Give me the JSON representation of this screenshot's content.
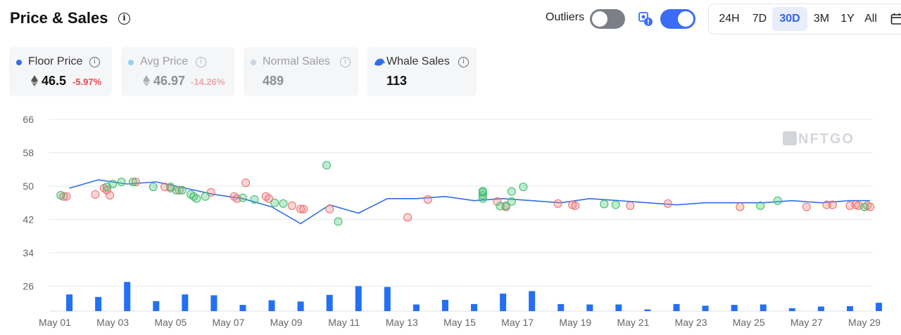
{
  "header": {
    "title": "Price & Sales",
    "outliers_label": "Outliers",
    "ranges": [
      "24H",
      "7D",
      "30D",
      "3M",
      "1Y",
      "All"
    ],
    "active_range": "30D"
  },
  "stats": [
    {
      "label": "Floor Price",
      "value": "46.5",
      "change": "-5.97%",
      "dot_color": "#2f6fe9",
      "change_color": "#e8474f"
    },
    {
      "label": "Avg Price",
      "value": "46.97",
      "change": "-14.26%",
      "dot_color": "#8fd3f0",
      "change_color": "#e8474f"
    },
    {
      "label": "Normal Sales",
      "value": "489",
      "dot_color": "#c9d3e6"
    },
    {
      "label": "Whale Sales",
      "value": "113"
    }
  ],
  "watermark": "NFTGO",
  "colors": {
    "accent": "#3b6cf6",
    "line": "#2f6fe9",
    "bar": "#2370f4",
    "up_fill": "rgba(76,200,120,0.35)",
    "up_stroke": "#3bb86a",
    "down_fill": "rgba(245,120,120,0.3)",
    "down_stroke": "#e86a6a"
  },
  "chart_data": {
    "type": "line+scatter+bar",
    "y_ticks": [
      66,
      58,
      50,
      42,
      34,
      26
    ],
    "ylim": [
      20,
      66
    ],
    "x_tick_labels": [
      "May 01",
      "May 03",
      "May 05",
      "May 07",
      "May 09",
      "May 11",
      "May 13",
      "May 15",
      "May 17",
      "May 19",
      "May 21",
      "May 23",
      "May 25",
      "May 27",
      "May 29"
    ],
    "xlim": [
      1,
      29
    ],
    "floor_price": {
      "x": [
        1.5,
        2.5,
        3.5,
        4.5,
        5.5,
        6.5,
        7.5,
        8.5,
        9.5,
        10.5,
        11.5,
        12.5,
        13.5,
        14.5,
        15.5,
        16.5,
        17.5,
        18.5,
        19.5,
        20.5,
        21.5,
        22.5,
        23.5,
        24.5,
        25.5,
        26.5,
        27.5,
        28.5,
        29.2
      ],
      "y": [
        49.5,
        51.5,
        50.5,
        51.0,
        49.5,
        48.0,
        47.0,
        45.0,
        41.0,
        45.5,
        43.5,
        47.0,
        47.0,
        47.5,
        46.5,
        47.0,
        46.5,
        46.0,
        47.0,
        46.5,
        46.0,
        45.5,
        46.0,
        46.0,
        46.0,
        46.5,
        46.0,
        46.5,
        46.5
      ]
    },
    "sales_up": [
      [
        1.2,
        47.8
      ],
      [
        2.8,
        49.8
      ],
      [
        3.0,
        50.5
      ],
      [
        3.3,
        51.0
      ],
      [
        3.7,
        51.0
      ],
      [
        4.4,
        49.8
      ],
      [
        5.0,
        49.8
      ],
      [
        5.2,
        49.0
      ],
      [
        5.4,
        49.0
      ],
      [
        5.7,
        48.0
      ],
      [
        5.8,
        47.5
      ],
      [
        5.9,
        47.0
      ],
      [
        6.2,
        47.5
      ],
      [
        7.5,
        47.2
      ],
      [
        7.9,
        46.8
      ],
      [
        8.6,
        46.0
      ],
      [
        8.9,
        45.8
      ],
      [
        10.4,
        55.0
      ],
      [
        10.8,
        41.5
      ],
      [
        15.8,
        47.0
      ],
      [
        15.8,
        47.8
      ],
      [
        15.8,
        48.5
      ],
      [
        15.8,
        48.8
      ],
      [
        16.4,
        45.2
      ],
      [
        16.6,
        45.3
      ],
      [
        16.8,
        46.3
      ],
      [
        16.8,
        48.7
      ],
      [
        17.2,
        49.8
      ],
      [
        20.0,
        45.7
      ],
      [
        20.4,
        45.5
      ],
      [
        25.4,
        45.3
      ],
      [
        26.0,
        46.5
      ],
      [
        29.0,
        45.0
      ]
    ],
    "sales_down": [
      [
        1.3,
        47.5
      ],
      [
        1.4,
        47.5
      ],
      [
        2.4,
        48.0
      ],
      [
        2.7,
        49.5
      ],
      [
        2.8,
        49.0
      ],
      [
        2.9,
        47.8
      ],
      [
        3.8,
        51.0
      ],
      [
        4.8,
        49.8
      ],
      [
        5.0,
        49.5
      ],
      [
        5.3,
        49.0
      ],
      [
        6.4,
        48.5
      ],
      [
        7.2,
        47.5
      ],
      [
        7.3,
        47.0
      ],
      [
        7.6,
        50.8
      ],
      [
        8.3,
        47.5
      ],
      [
        8.4,
        47.0
      ],
      [
        9.2,
        45.3
      ],
      [
        9.5,
        44.5
      ],
      [
        9.6,
        44.5
      ],
      [
        10.5,
        44.5
      ],
      [
        13.2,
        42.5
      ],
      [
        13.9,
        46.8
      ],
      [
        16.3,
        46.3
      ],
      [
        16.6,
        45.0
      ],
      [
        18.4,
        45.8
      ],
      [
        18.9,
        45.5
      ],
      [
        19.0,
        45.3
      ],
      [
        20.9,
        45.3
      ],
      [
        22.2,
        45.8
      ],
      [
        24.7,
        45.0
      ],
      [
        27.0,
        45.0
      ],
      [
        27.7,
        45.5
      ],
      [
        27.9,
        45.5
      ],
      [
        28.5,
        45.3
      ],
      [
        28.7,
        45.5
      ],
      [
        28.8,
        45.3
      ],
      [
        29.1,
        45.3
      ],
      [
        29.2,
        45.0
      ]
    ],
    "sales_volume": {
      "x": [
        1.5,
        2.5,
        3.5,
        4.5,
        5.5,
        6.5,
        7.5,
        8.5,
        9.5,
        10.5,
        11.5,
        12.5,
        13.5,
        14.5,
        15.5,
        16.5,
        17.5,
        18.5,
        19.5,
        20.5,
        21.5,
        22.5,
        23.5,
        24.5,
        25.5,
        26.5,
        27.5,
        28.5,
        29.5
      ],
      "y": [
        24.0,
        23.4,
        27.0,
        22.4,
        24.0,
        23.8,
        21.5,
        22.6,
        22.3,
        23.9,
        26.0,
        25.8,
        21.6,
        22.7,
        21.7,
        24.2,
        24.8,
        21.7,
        21.6,
        21.6,
        20.4,
        21.7,
        21.3,
        21.5,
        21.6,
        20.7,
        21.1,
        21.2,
        22.0
      ]
    }
  }
}
